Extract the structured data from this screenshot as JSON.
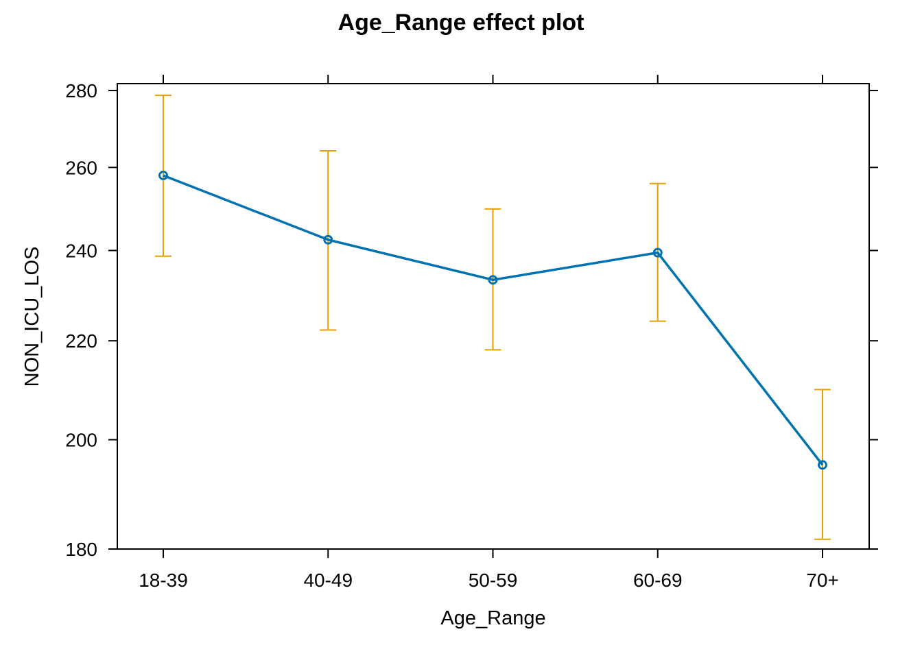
{
  "chart_data": {
    "type": "line",
    "title": "Age_Range effect plot",
    "xlabel": "Age_Range",
    "ylabel": "NON_ICU_LOS",
    "categories": [
      "18-39",
      "40-49",
      "50-59",
      "60-69",
      "70+"
    ],
    "y_scale": "log",
    "y_ticks": [
      180,
      200,
      220,
      240,
      260,
      280
    ],
    "ylim": [
      180,
      281.5
    ],
    "series": [
      {
        "values": [
          258,
          242.5,
          233.3,
          239.5,
          195.2
        ],
        "lower": [
          238.7,
          222.3,
          218.1,
          224.2,
          181.7
        ],
        "upper": [
          278.7,
          264.2,
          249.8,
          256,
          209.9
        ],
        "color": "#0072B2"
      }
    ],
    "errorbar_color": "#E69F00",
    "grid": false
  }
}
